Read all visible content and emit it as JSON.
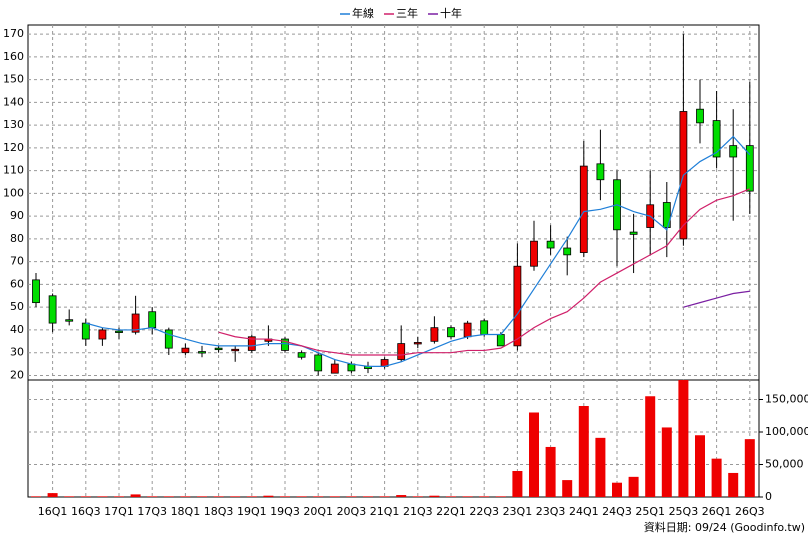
{
  "chart_data": {
    "type": "candlestick",
    "categories": [
      null,
      "16Q1",
      null,
      "16Q3",
      null,
      "17Q1",
      null,
      "17Q3",
      null,
      "18Q1",
      null,
      "18Q3",
      null,
      "19Q1",
      null,
      "19Q3",
      null,
      "20Q1",
      null,
      "20Q3",
      null,
      "21Q1",
      null,
      "21Q3",
      null,
      "22Q1",
      null,
      "22Q3",
      null,
      "23Q1",
      null,
      "23Q3",
      null,
      "24Q1",
      null,
      "24Q3",
      null,
      "25Q1",
      null,
      "25Q3",
      null,
      "26Q1",
      null,
      "26Q3"
    ],
    "open": [
      62,
      55,
      44.5,
      43,
      36,
      39.5,
      39,
      48,
      40,
      30,
      30.5,
      32,
      31,
      31,
      35,
      36,
      30,
      29,
      21,
      25,
      24,
      24,
      27,
      34,
      35,
      41,
      37,
      44,
      38,
      33,
      68,
      79,
      76,
      74,
      113,
      106,
      83,
      85,
      96,
      80,
      137,
      132,
      121,
      121
    ],
    "high": [
      65,
      56,
      49,
      45,
      41,
      41,
      55,
      50,
      41,
      34,
      33,
      33,
      33,
      38,
      42,
      37,
      31,
      30,
      27,
      26,
      26,
      28,
      42,
      37,
      46,
      42,
      44,
      45,
      39,
      78,
      88,
      86,
      81,
      123,
      128,
      110,
      91,
      110,
      105,
      170,
      150,
      145,
      137,
      149
    ],
    "low": [
      50,
      39,
      42,
      33,
      33,
      36,
      38,
      38,
      29,
      29,
      28,
      30,
      26,
      30,
      33,
      30,
      27,
      20,
      21,
      21,
      21,
      23,
      26,
      32,
      34,
      36,
      36,
      37,
      33,
      31,
      66,
      73,
      64,
      72,
      97,
      68,
      65,
      73,
      72,
      77,
      122,
      111,
      88,
      91
    ],
    "close": [
      52,
      43,
      44,
      36,
      40,
      39,
      47,
      41,
      32,
      32,
      30,
      31.5,
      31.5,
      37,
      36,
      31,
      28,
      22,
      25,
      22,
      23,
      27,
      34,
      34.5,
      41,
      37,
      43,
      38,
      33,
      68,
      79,
      76,
      73,
      112,
      106,
      84,
      82,
      95,
      85,
      136,
      131,
      116,
      116,
      101
    ],
    "up_color": "#ee0000",
    "down_color": "#00dd00",
    "series": [
      {
        "name": "年線",
        "color": "#1f7fd8",
        "values": [
          null,
          null,
          null,
          43,
          41,
          40,
          40,
          41,
          38,
          36,
          34,
          33,
          33,
          33,
          34,
          34,
          33,
          30,
          27,
          25,
          24,
          24,
          26,
          29,
          32,
          35,
          37,
          38,
          38,
          47,
          58,
          69,
          80,
          92,
          93,
          95,
          92,
          90,
          84,
          108,
          114,
          118,
          125,
          117
        ]
      },
      {
        "name": "三年",
        "color": "#d0206a",
        "values": [
          null,
          null,
          null,
          null,
          null,
          null,
          null,
          null,
          null,
          null,
          null,
          39,
          37,
          36,
          36,
          35,
          33,
          31,
          30,
          29,
          29,
          29,
          29,
          30,
          30,
          30,
          31,
          31,
          32,
          36,
          41,
          45,
          48,
          54,
          61,
          65,
          69,
          73,
          77,
          86,
          93,
          97,
          99,
          102
        ]
      },
      {
        "name": "十年",
        "color": "#7a1fa2",
        "values": [
          null,
          null,
          null,
          null,
          null,
          null,
          null,
          null,
          null,
          null,
          null,
          null,
          null,
          null,
          null,
          null,
          null,
          null,
          null,
          null,
          null,
          null,
          null,
          null,
          null,
          null,
          null,
          null,
          null,
          null,
          null,
          null,
          null,
          null,
          null,
          null,
          null,
          null,
          null,
          50,
          52,
          54,
          56,
          57
        ]
      }
    ],
    "ylim": [
      18,
      174
    ],
    "yticks": [
      20,
      30,
      40,
      50,
      60,
      70,
      80,
      90,
      100,
      110,
      120,
      130,
      140,
      150,
      160,
      170
    ],
    "volume": {
      "color": "#ee0000",
      "values": [
        1000,
        6000,
        1000,
        1000,
        1000,
        1000,
        4000,
        1000,
        1000,
        1000,
        1000,
        1000,
        1000,
        1000,
        2000,
        1000,
        1000,
        1000,
        1000,
        1000,
        1000,
        1000,
        3000,
        1000,
        2000,
        1000,
        1000,
        1000,
        1000,
        40000,
        130000,
        77000,
        26000,
        140000,
        91000,
        22000,
        31000,
        155000,
        107000,
        180000,
        95000,
        59000,
        37000,
        89000
      ],
      "ylim": [
        0,
        180000
      ],
      "yticks": [
        0,
        {
          "value": 50000,
          "label": "50,000"
        },
        {
          "value": 100000,
          "label": "100,000"
        },
        {
          "value": 150000,
          "label": "150,000"
        }
      ]
    },
    "grid": true,
    "legend": "top",
    "source": "資料日期: 09/24 (Goodinfo.tw)"
  }
}
